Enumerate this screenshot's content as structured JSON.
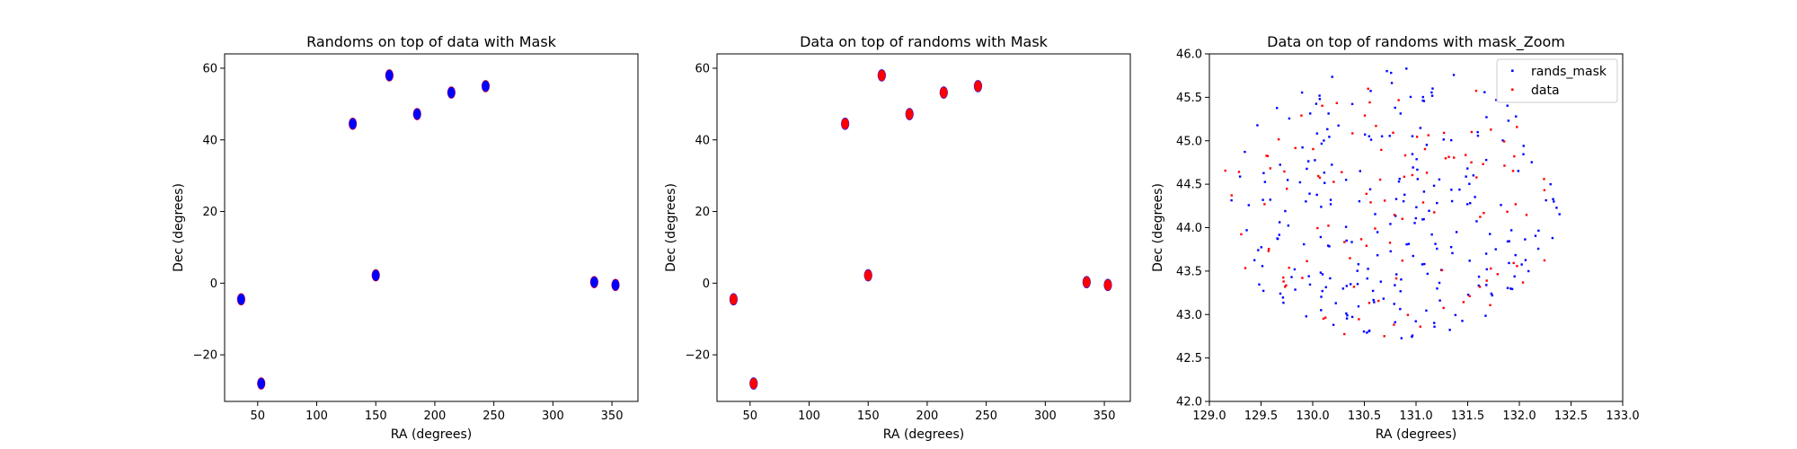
{
  "chart_data": [
    {
      "type": "scatter",
      "title": "Randoms on top of data with Mask",
      "xlabel": "RA (degrees)",
      "ylabel": "Dec (degrees)",
      "xlim": [
        22,
        372
      ],
      "ylim": [
        -33,
        64
      ],
      "xticks": [
        {
          "v": 50,
          "label": "50"
        },
        {
          "v": 100,
          "label": "100"
        },
        {
          "v": 150,
          "label": "150"
        },
        {
          "v": 200,
          "label": "200"
        },
        {
          "v": 250,
          "label": "250"
        },
        {
          "v": 300,
          "label": "300"
        },
        {
          "v": 350,
          "label": "350"
        }
      ],
      "yticks": [
        {
          "v": -20,
          "label": "−20"
        },
        {
          "v": 0,
          "label": "0"
        },
        {
          "v": 20,
          "label": "20"
        },
        {
          "v": 40,
          "label": "40"
        },
        {
          "v": 60,
          "label": "60"
        }
      ],
      "clusters": [
        {
          "ra": 36,
          "dec": -4.5
        },
        {
          "ra": 53,
          "dec": -28
        },
        {
          "ra": 130.5,
          "dec": 44.5
        },
        {
          "ra": 150,
          "dec": 2.2
        },
        {
          "ra": 161.5,
          "dec": 58
        },
        {
          "ra": 185,
          "dec": 47.2
        },
        {
          "ra": 214,
          "dec": 53.2
        },
        {
          "ra": 243,
          "dec": 55
        },
        {
          "ra": 335,
          "dec": 0.3
        },
        {
          "ra": 353,
          "dec": -0.5
        }
      ],
      "series": [
        {
          "name": "data",
          "color": "#ff0000",
          "draw_order": 0
        },
        {
          "name": "rands_mask",
          "color": "#0000ff",
          "draw_order": 1
        }
      ],
      "grid": false
    },
    {
      "type": "scatter",
      "title": "Data on top of randoms with Mask",
      "xlabel": "RA (degrees)",
      "ylabel": "Dec (degrees)",
      "xlim": [
        22,
        372
      ],
      "ylim": [
        -33,
        64
      ],
      "xticks": [
        {
          "v": 50,
          "label": "50"
        },
        {
          "v": 100,
          "label": "100"
        },
        {
          "v": 150,
          "label": "150"
        },
        {
          "v": 200,
          "label": "200"
        },
        {
          "v": 250,
          "label": "250"
        },
        {
          "v": 300,
          "label": "300"
        },
        {
          "v": 350,
          "label": "350"
        }
      ],
      "yticks": [
        {
          "v": -20,
          "label": "−20"
        },
        {
          "v": 0,
          "label": "0"
        },
        {
          "v": 20,
          "label": "20"
        },
        {
          "v": 40,
          "label": "40"
        },
        {
          "v": 60,
          "label": "60"
        }
      ],
      "clusters": [
        {
          "ra": 36,
          "dec": -4.5
        },
        {
          "ra": 53,
          "dec": -28
        },
        {
          "ra": 130.5,
          "dec": 44.5
        },
        {
          "ra": 150,
          "dec": 2.2
        },
        {
          "ra": 161.5,
          "dec": 58
        },
        {
          "ra": 185,
          "dec": 47.2
        },
        {
          "ra": 214,
          "dec": 53.2
        },
        {
          "ra": 243,
          "dec": 55
        },
        {
          "ra": 335,
          "dec": 0.3
        },
        {
          "ra": 353,
          "dec": -0.5
        }
      ],
      "series": [
        {
          "name": "rands_mask",
          "color": "#0000ff",
          "draw_order": 0
        },
        {
          "name": "data",
          "color": "#ff0000",
          "draw_order": 1
        }
      ],
      "grid": false
    },
    {
      "type": "scatter",
      "title": "Data on top of randoms with mask_Zoom",
      "xlabel": "RA (degrees)",
      "ylabel": "Dec (degrees)",
      "xlim": [
        129.0,
        133.0
      ],
      "ylim": [
        42.0,
        46.0
      ],
      "xticks": [
        {
          "v": 129.0,
          "label": "129.0"
        },
        {
          "v": 129.5,
          "label": "129.5"
        },
        {
          "v": 130.0,
          "label": "130.0"
        },
        {
          "v": 130.5,
          "label": "130.5"
        },
        {
          "v": 131.0,
          "label": "131.0"
        },
        {
          "v": 131.5,
          "label": "131.5"
        },
        {
          "v": 132.0,
          "label": "132.0"
        },
        {
          "v": 132.5,
          "label": "132.5"
        },
        {
          "v": 133.0,
          "label": "133.0"
        }
      ],
      "yticks": [
        {
          "v": 42.0,
          "label": "42.0"
        },
        {
          "v": 42.5,
          "label": "42.5"
        },
        {
          "v": 43.0,
          "label": "43.0"
        },
        {
          "v": 43.5,
          "label": "43.5"
        },
        {
          "v": 44.0,
          "label": "44.0"
        },
        {
          "v": 44.5,
          "label": "44.5"
        },
        {
          "v": 45.0,
          "label": "45.0"
        },
        {
          "v": 45.5,
          "label": "45.5"
        },
        {
          "v": 46.0,
          "label": "46.0"
        }
      ],
      "field": {
        "center_ra": 130.75,
        "center_dec": 44.3,
        "radius_ra": 1.65,
        "radius_dec": 1.6
      },
      "series": [
        {
          "name": "rands_mask",
          "color": "#0000ff",
          "approx_count": 250
        },
        {
          "name": "data",
          "color": "#ff0000",
          "approx_count": 110
        }
      ],
      "legend": {
        "placement": "upper-right",
        "entries": [
          "rands_mask",
          "data"
        ]
      },
      "grid": false
    }
  ]
}
